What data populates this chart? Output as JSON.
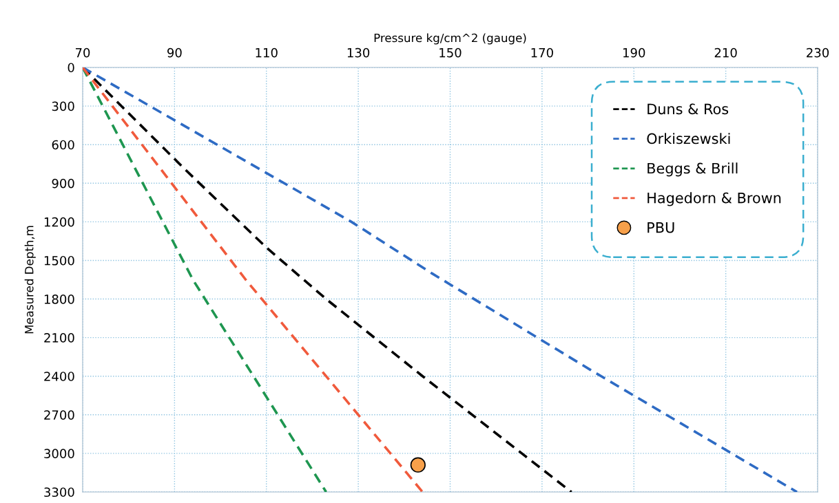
{
  "chart_data": {
    "type": "line",
    "xlabel": "Pressure kg/cm^2 (gauge)",
    "ylabel": "Measured Depth,m",
    "xlim": [
      70,
      230
    ],
    "xticks": [
      70,
      90,
      110,
      130,
      150,
      170,
      190,
      210,
      230
    ],
    "ylim": [
      3300,
      0
    ],
    "yticks": [
      0,
      300,
      600,
      900,
      1200,
      1500,
      1800,
      2100,
      2400,
      2700,
      3000,
      3300
    ],
    "grid": true,
    "legend": "top right",
    "line_style": "dashed",
    "series": [
      {
        "name": "Duns & Ros",
        "color": "#000000",
        "x": [
          70,
          92.5,
          110,
          123,
          144,
          176.4
        ],
        "values": [
          0,
          800,
          1400,
          1800,
          2400,
          3300
        ]
      },
      {
        "name": "Orkiszewski",
        "color": "#2e6bc4",
        "x": [
          70,
          128.5,
          146,
          180.5,
          225.5
        ],
        "values": [
          0,
          1200,
          1600,
          2350,
          3300
        ]
      },
      {
        "name": "Beggs & Brill",
        "color": "#1e9650",
        "x": [
          70,
          94,
          123
        ],
        "values": [
          0,
          1650,
          3300
        ]
      },
      {
        "name": "Hagedorn & Brown",
        "color": "#f05a3c",
        "x": [
          70,
          105.5,
          144
        ],
        "values": [
          0,
          1650,
          3300
        ]
      },
      {
        "name": "PBU",
        "type": "scatter",
        "marker": "circle",
        "color": "#f7a04a",
        "x": [
          143
        ],
        "values": [
          3090
        ]
      }
    ]
  }
}
